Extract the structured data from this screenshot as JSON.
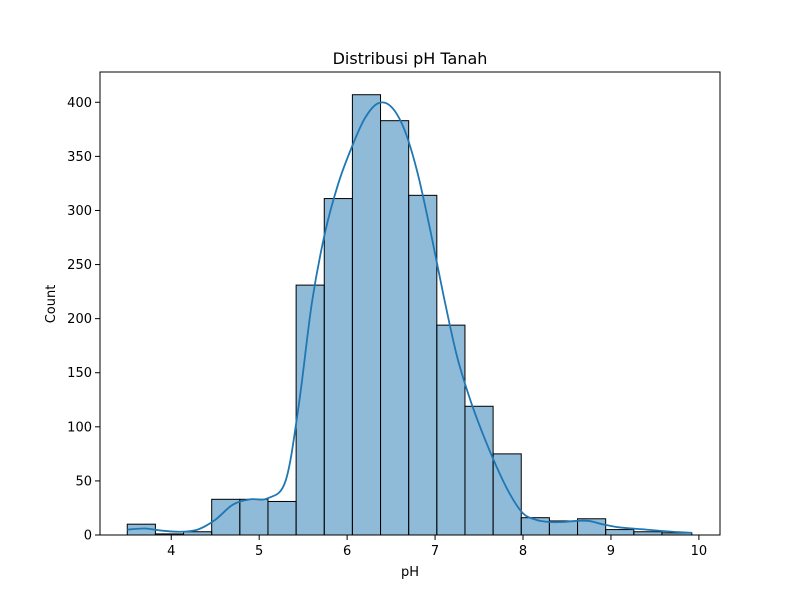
{
  "chart_data": {
    "type": "bar",
    "title": "Distribusi pH Tanah",
    "xlabel": "pH",
    "ylabel": "Count",
    "xlim": [
      3.19,
      10.24
    ],
    "ylim": [
      0,
      428
    ],
    "xticks": [
      4,
      5,
      6,
      7,
      8,
      9,
      10
    ],
    "yticks": [
      0,
      50,
      100,
      150,
      200,
      250,
      300,
      350,
      400
    ],
    "grid": false,
    "legend": "none",
    "bar_color": "#1f77b4",
    "bar_alpha": 0.5,
    "edge_color": "#000000",
    "bins": [
      {
        "x0": 3.5,
        "x1": 3.82,
        "count": 10
      },
      {
        "x0": 3.82,
        "x1": 4.14,
        "count": 1
      },
      {
        "x0": 4.14,
        "x1": 4.46,
        "count": 3
      },
      {
        "x0": 4.46,
        "x1": 4.78,
        "count": 33
      },
      {
        "x0": 4.78,
        "x1": 5.1,
        "count": 33
      },
      {
        "x0": 5.1,
        "x1": 5.42,
        "count": 31
      },
      {
        "x0": 5.42,
        "x1": 5.74,
        "count": 231
      },
      {
        "x0": 5.74,
        "x1": 6.06,
        "count": 311
      },
      {
        "x0": 6.06,
        "x1": 6.38,
        "count": 407
      },
      {
        "x0": 6.38,
        "x1": 6.7,
        "count": 383
      },
      {
        "x0": 6.7,
        "x1": 7.02,
        "count": 314
      },
      {
        "x0": 7.02,
        "x1": 7.34,
        "count": 194
      },
      {
        "x0": 7.34,
        "x1": 7.66,
        "count": 119
      },
      {
        "x0": 7.66,
        "x1": 7.98,
        "count": 75
      },
      {
        "x0": 7.98,
        "x1": 8.3,
        "count": 16
      },
      {
        "x0": 8.3,
        "x1": 8.62,
        "count": 13
      },
      {
        "x0": 8.62,
        "x1": 8.94,
        "count": 15
      },
      {
        "x0": 8.94,
        "x1": 9.26,
        "count": 5
      },
      {
        "x0": 9.26,
        "x1": 9.58,
        "count": 3
      },
      {
        "x0": 9.58,
        "x1": 9.92,
        "count": 2
      }
    ],
    "kde": {
      "color": "#1f77b4",
      "points": [
        [
          3.5,
          5
        ],
        [
          3.7,
          6
        ],
        [
          3.9,
          4
        ],
        [
          4.1,
          3
        ],
        [
          4.3,
          5
        ],
        [
          4.5,
          14
        ],
        [
          4.7,
          28
        ],
        [
          4.9,
          33
        ],
        [
          5.1,
          34
        ],
        [
          5.3,
          50
        ],
        [
          5.45,
          120
        ],
        [
          5.6,
          215
        ],
        [
          5.75,
          280
        ],
        [
          5.9,
          325
        ],
        [
          6.05,
          358
        ],
        [
          6.2,
          385
        ],
        [
          6.35,
          399
        ],
        [
          6.5,
          396
        ],
        [
          6.65,
          375
        ],
        [
          6.8,
          335
        ],
        [
          6.95,
          280
        ],
        [
          7.1,
          220
        ],
        [
          7.25,
          165
        ],
        [
          7.4,
          125
        ],
        [
          7.55,
          92
        ],
        [
          7.7,
          63
        ],
        [
          7.85,
          38
        ],
        [
          8.0,
          20
        ],
        [
          8.15,
          14
        ],
        [
          8.3,
          12
        ],
        [
          8.45,
          12
        ],
        [
          8.6,
          13
        ],
        [
          8.75,
          13
        ],
        [
          8.9,
          10
        ],
        [
          9.1,
          7
        ],
        [
          9.4,
          5
        ],
        [
          9.7,
          3
        ],
        [
          9.92,
          2
        ]
      ]
    }
  }
}
